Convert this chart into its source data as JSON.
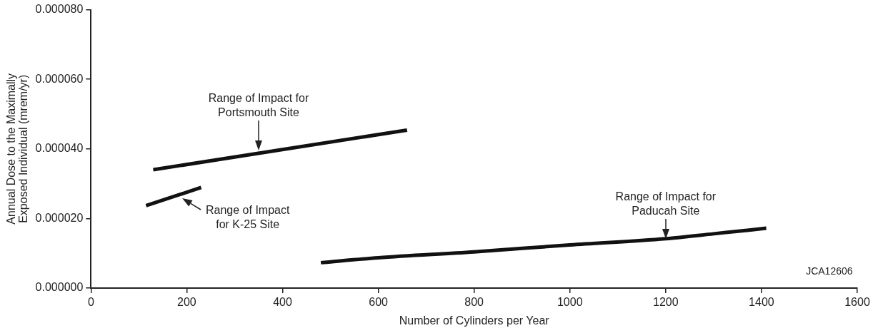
{
  "chart_data": {
    "type": "line",
    "xlabel": "Number of Cylinders per Year",
    "ylabel": "Annual Dose to the Maximally\nExposed Individual (mrem/yr)",
    "xlim": [
      0,
      1600
    ],
    "xticks": [
      0,
      200,
      400,
      600,
      800,
      1000,
      1200,
      1400,
      1600
    ],
    "ylim": [
      0,
      8e-05
    ],
    "yticks": [
      {
        "value": 0,
        "label": "0.000000"
      },
      {
        "value": 2e-05,
        "label": "0.000020"
      },
      {
        "value": 4e-05,
        "label": "0.000040"
      },
      {
        "value": 6e-05,
        "label": "0.000060"
      },
      {
        "value": 8e-05,
        "label": "0.000080"
      }
    ],
    "grid": false,
    "legend": false,
    "marker": "none",
    "line_style": "solid",
    "series": [
      {
        "color": "#111111",
        "x": [
          130,
          660
        ],
        "values": [
          3.4e-05,
          4.54e-05
        ]
      },
      {
        "color": "#111111",
        "x": [
          115,
          230
        ],
        "values": [
          2.37e-05,
          2.89e-05
        ]
      },
      {
        "color": "#111111",
        "x": [
          480,
          600,
          800,
          1000,
          1200,
          1300,
          1410
        ],
        "values": [
          7.3e-06,
          8.7e-06,
          1.04e-05,
          1.24e-05,
          1.42e-05,
          1.56e-05,
          1.72e-05
        ]
      }
    ],
    "annotations": [
      {
        "text": "Range of Impact for\nPortsmouth Site",
        "x": 350,
        "y": 3.96e-05
      },
      {
        "text": "Range of Impact\nfor K-25 Site",
        "x": 190,
        "y": 2.59e-05
      },
      {
        "text": "Range of Impact for\nPaducah Site",
        "x": 1200,
        "y": 1.42e-05
      },
      "JCA12606"
    ]
  }
}
